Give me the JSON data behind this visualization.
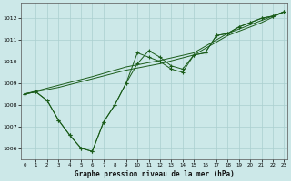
{
  "xlabel": "Graphe pression niveau de la mer (hPa)",
  "background_color": "#cce8e8",
  "grid_color": "#aacfcf",
  "line_color": "#1a5c1a",
  "ylim": [
    1005.5,
    1012.7
  ],
  "xlim": [
    -0.3,
    23.3
  ],
  "yticks": [
    1006,
    1007,
    1008,
    1009,
    1010,
    1011,
    1012
  ],
  "xticks": [
    0,
    1,
    2,
    3,
    4,
    5,
    6,
    7,
    8,
    9,
    10,
    11,
    12,
    13,
    14,
    15,
    16,
    17,
    18,
    19,
    20,
    21,
    22,
    23
  ],
  "series_straight": {
    "x": [
      0,
      3,
      6,
      9,
      12,
      15,
      18,
      21,
      23
    ],
    "y": [
      1008.5,
      1008.8,
      1009.2,
      1009.6,
      1009.9,
      1010.3,
      1011.2,
      1011.8,
      1012.3
    ]
  },
  "series_straight2": {
    "x": [
      0,
      3,
      6,
      9,
      12,
      15,
      18,
      21,
      23
    ],
    "y": [
      1008.5,
      1008.9,
      1009.3,
      1009.75,
      1010.05,
      1010.4,
      1011.3,
      1011.9,
      1012.3
    ]
  },
  "series_dip1": {
    "x": [
      0,
      1,
      2,
      3,
      4,
      5,
      6,
      7,
      8,
      9,
      10,
      11,
      12,
      13,
      14,
      15,
      16,
      17,
      18,
      19,
      20,
      21,
      22,
      23
    ],
    "y": [
      1008.5,
      1008.6,
      1008.2,
      1007.3,
      1006.6,
      1006.0,
      1005.85,
      1007.2,
      1008.0,
      1009.0,
      1010.4,
      1010.2,
      1010.0,
      1009.65,
      1009.5,
      1010.3,
      1010.4,
      1011.2,
      1011.3,
      1011.6,
      1011.8,
      1012.0,
      1012.1,
      1012.3
    ]
  },
  "series_dip2": {
    "x": [
      0,
      1,
      2,
      3,
      4,
      5,
      6,
      7,
      8,
      9,
      10,
      11,
      12,
      13,
      14,
      15,
      16,
      17,
      18,
      19,
      20,
      21,
      22,
      23
    ],
    "y": [
      1008.5,
      1008.6,
      1008.2,
      1007.3,
      1006.6,
      1006.0,
      1005.85,
      1007.2,
      1008.0,
      1009.0,
      1009.9,
      1010.5,
      1010.2,
      1009.8,
      1009.65,
      1010.3,
      1010.4,
      1011.2,
      1011.3,
      1011.6,
      1011.8,
      1012.0,
      1012.1,
      1012.3
    ]
  }
}
